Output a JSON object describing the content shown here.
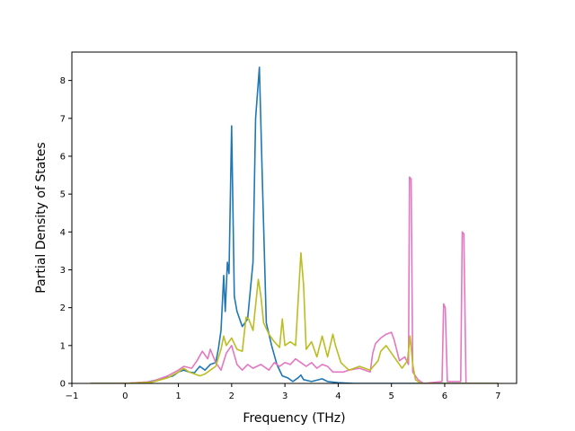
{
  "chart_data": {
    "type": "line",
    "title": "",
    "xlabel": "Frequency (THz)",
    "ylabel": "Partial Density of States",
    "xlim": [
      -1,
      7.35
    ],
    "ylim": [
      0,
      8.75
    ],
    "xticks": [
      -1,
      0,
      1,
      2,
      3,
      4,
      5,
      6,
      7
    ],
    "yticks": [
      0,
      1,
      2,
      3,
      4,
      5,
      6,
      7,
      8
    ],
    "grid": false,
    "legend": "none",
    "series": [
      {
        "color": "#1f77b4",
        "points": [
          [
            -0.65,
            0
          ],
          [
            0,
            0
          ],
          [
            0.4,
            0.03
          ],
          [
            0.7,
            0.12
          ],
          [
            0.9,
            0.2
          ],
          [
            1.0,
            0.3
          ],
          [
            1.1,
            0.35
          ],
          [
            1.2,
            0.3
          ],
          [
            1.3,
            0.28
          ],
          [
            1.4,
            0.45
          ],
          [
            1.5,
            0.35
          ],
          [
            1.6,
            0.5
          ],
          [
            1.7,
            0.55
          ],
          [
            1.75,
            0.9
          ],
          [
            1.8,
            1.4
          ],
          [
            1.85,
            2.85
          ],
          [
            1.88,
            1.9
          ],
          [
            1.92,
            3.2
          ],
          [
            1.95,
            2.9
          ],
          [
            2.0,
            6.8
          ],
          [
            2.05,
            2.3
          ],
          [
            2.1,
            1.9
          ],
          [
            2.2,
            1.5
          ],
          [
            2.3,
            1.7
          ],
          [
            2.4,
            3.2
          ],
          [
            2.45,
            7.0
          ],
          [
            2.52,
            8.35
          ],
          [
            2.58,
            5.2
          ],
          [
            2.65,
            1.6
          ],
          [
            2.75,
            1.0
          ],
          [
            2.85,
            0.5
          ],
          [
            2.95,
            0.2
          ],
          [
            3.05,
            0.15
          ],
          [
            3.15,
            0.05
          ],
          [
            3.25,
            0.15
          ],
          [
            3.3,
            0.22
          ],
          [
            3.35,
            0.1
          ],
          [
            3.5,
            0.05
          ],
          [
            3.7,
            0.12
          ],
          [
            3.8,
            0.05
          ],
          [
            4.0,
            0.02
          ],
          [
            4.3,
            0
          ],
          [
            7.0,
            0
          ]
        ]
      },
      {
        "color": "#e377c2",
        "points": [
          [
            -0.65,
            0
          ],
          [
            0,
            0
          ],
          [
            0.5,
            0.05
          ],
          [
            0.8,
            0.2
          ],
          [
            1.0,
            0.35
          ],
          [
            1.1,
            0.45
          ],
          [
            1.25,
            0.4
          ],
          [
            1.35,
            0.6
          ],
          [
            1.45,
            0.85
          ],
          [
            1.55,
            0.65
          ],
          [
            1.6,
            0.9
          ],
          [
            1.7,
            0.55
          ],
          [
            1.8,
            0.35
          ],
          [
            1.9,
            0.8
          ],
          [
            2.0,
            1.0
          ],
          [
            2.1,
            0.5
          ],
          [
            2.2,
            0.35
          ],
          [
            2.3,
            0.5
          ],
          [
            2.4,
            0.4
          ],
          [
            2.55,
            0.5
          ],
          [
            2.7,
            0.35
          ],
          [
            2.8,
            0.55
          ],
          [
            2.9,
            0.45
          ],
          [
            3.0,
            0.55
          ],
          [
            3.1,
            0.5
          ],
          [
            3.2,
            0.65
          ],
          [
            3.3,
            0.55
          ],
          [
            3.4,
            0.45
          ],
          [
            3.5,
            0.55
          ],
          [
            3.6,
            0.4
          ],
          [
            3.7,
            0.5
          ],
          [
            3.8,
            0.45
          ],
          [
            3.9,
            0.3
          ],
          [
            4.1,
            0.3
          ],
          [
            4.2,
            0.35
          ],
          [
            4.4,
            0.4
          ],
          [
            4.6,
            0.3
          ],
          [
            4.65,
            0.8
          ],
          [
            4.7,
            1.05
          ],
          [
            4.8,
            1.2
          ],
          [
            4.9,
            1.3
          ],
          [
            5.0,
            1.35
          ],
          [
            5.05,
            1.15
          ],
          [
            5.15,
            0.6
          ],
          [
            5.25,
            0.7
          ],
          [
            5.32,
            0.5
          ],
          [
            5.34,
            5.45
          ],
          [
            5.37,
            5.4
          ],
          [
            5.4,
            0.3
          ],
          [
            5.5,
            0.1
          ],
          [
            5.6,
            0
          ],
          [
            5.95,
            0.05
          ],
          [
            5.98,
            2.1
          ],
          [
            6.01,
            2.0
          ],
          [
            6.05,
            0.05
          ],
          [
            6.3,
            0.05
          ],
          [
            6.33,
            4.0
          ],
          [
            6.36,
            3.95
          ],
          [
            6.4,
            0
          ],
          [
            7.0,
            0
          ]
        ]
      },
      {
        "color": "#bcbd22",
        "points": [
          [
            -0.65,
            0
          ],
          [
            0,
            0
          ],
          [
            0.5,
            0.03
          ],
          [
            0.8,
            0.15
          ],
          [
            1.0,
            0.3
          ],
          [
            1.1,
            0.4
          ],
          [
            1.2,
            0.3
          ],
          [
            1.4,
            0.2
          ],
          [
            1.5,
            0.25
          ],
          [
            1.6,
            0.35
          ],
          [
            1.7,
            0.45
          ],
          [
            1.8,
            0.9
          ],
          [
            1.85,
            1.25
          ],
          [
            1.9,
            1.0
          ],
          [
            2.0,
            1.2
          ],
          [
            2.1,
            0.9
          ],
          [
            2.2,
            0.85
          ],
          [
            2.27,
            1.75
          ],
          [
            2.32,
            1.7
          ],
          [
            2.4,
            1.4
          ],
          [
            2.5,
            2.75
          ],
          [
            2.55,
            2.3
          ],
          [
            2.6,
            1.6
          ],
          [
            2.7,
            1.3
          ],
          [
            2.8,
            1.1
          ],
          [
            2.9,
            0.95
          ],
          [
            2.95,
            1.7
          ],
          [
            3.0,
            1.0
          ],
          [
            3.1,
            1.1
          ],
          [
            3.2,
            1.0
          ],
          [
            3.3,
            3.45
          ],
          [
            3.35,
            2.6
          ],
          [
            3.4,
            0.9
          ],
          [
            3.5,
            1.1
          ],
          [
            3.6,
            0.7
          ],
          [
            3.7,
            1.25
          ],
          [
            3.8,
            0.7
          ],
          [
            3.9,
            1.3
          ],
          [
            3.95,
            1.0
          ],
          [
            4.05,
            0.55
          ],
          [
            4.2,
            0.35
          ],
          [
            4.4,
            0.45
          ],
          [
            4.6,
            0.35
          ],
          [
            4.75,
            0.6
          ],
          [
            4.8,
            0.85
          ],
          [
            4.9,
            1.0
          ],
          [
            5.0,
            0.8
          ],
          [
            5.1,
            0.6
          ],
          [
            5.2,
            0.4
          ],
          [
            5.3,
            0.6
          ],
          [
            5.35,
            1.25
          ],
          [
            5.4,
            0.5
          ],
          [
            5.45,
            0.1
          ],
          [
            5.55,
            0
          ],
          [
            7.0,
            0
          ]
        ]
      }
    ]
  }
}
